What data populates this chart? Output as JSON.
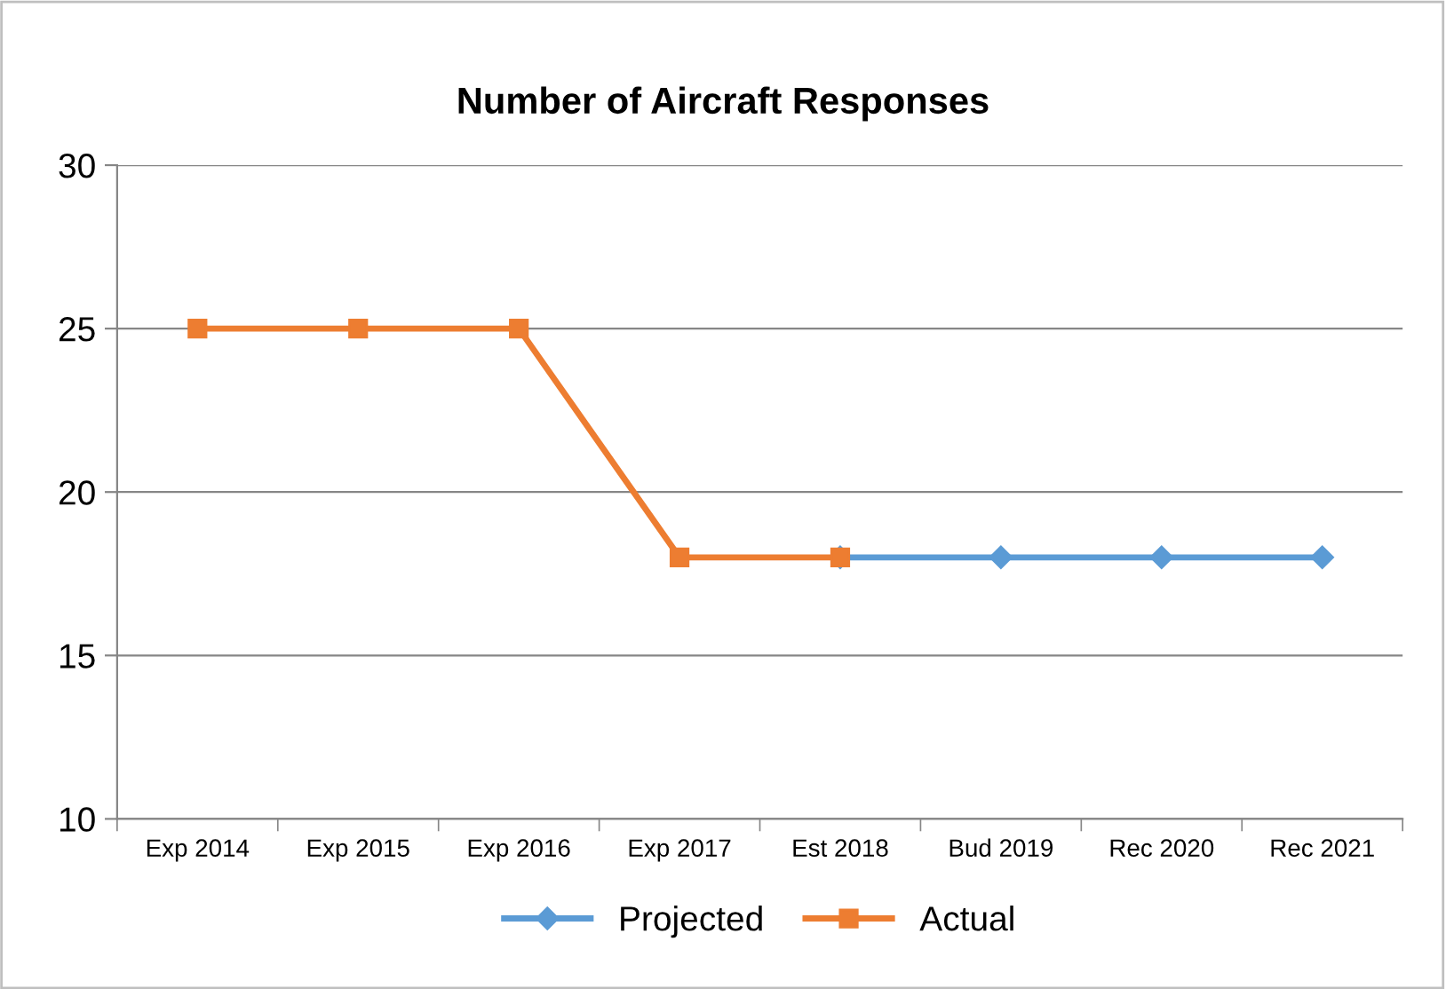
{
  "chart_data": {
    "type": "line",
    "title": "Number of Aircraft Responses",
    "categories": [
      "Exp 2014",
      "Exp 2015",
      "Exp 2016",
      "Exp 2017",
      "Est 2018",
      "Bud 2019",
      "Rec 2020",
      "Rec 2021"
    ],
    "series": [
      {
        "name": "Projected",
        "color": "#5b9bd5",
        "marker": "diamond",
        "values": [
          null,
          null,
          null,
          null,
          18,
          18,
          18,
          18
        ]
      },
      {
        "name": "Actual",
        "color": "#ed7d31",
        "marker": "square",
        "values": [
          25,
          25,
          25,
          18,
          18,
          null,
          null,
          null
        ]
      }
    ],
    "ylim": [
      10,
      30
    ],
    "yticks": [
      10,
      15,
      20,
      25,
      30
    ],
    "grid": "y",
    "legend": "bottom",
    "line_style": "solid"
  }
}
